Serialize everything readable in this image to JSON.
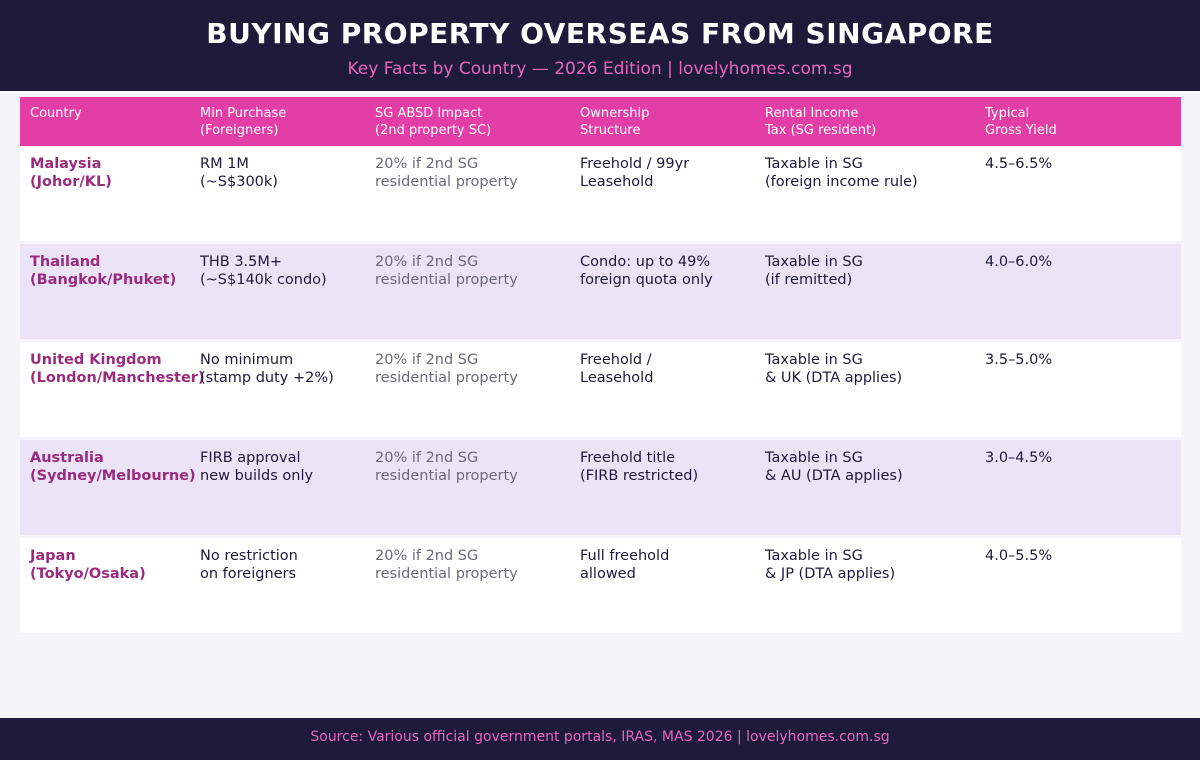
{
  "header": {
    "title": "BUYING PROPERTY OVERSEAS FROM SINGAPORE",
    "subtitle": "Key Facts by Country — 2026 Edition | lovelyhomes.com.sg"
  },
  "table": {
    "columns": [
      "Country",
      "Min Purchase\n(Foreigners)",
      "SG ABSD Impact\n(2nd property SC)",
      "Ownership\nStructure",
      "Rental Income\nTax (SG resident)",
      "Typical\nGross Yield"
    ],
    "rows": [
      {
        "country": "Malaysia\n(Johor/KL)",
        "min_purchase": "RM 1M\n(~S$300k)",
        "absd": "20% if 2nd SG\nresidential property",
        "ownership": "Freehold / 99yr\nLeasehold",
        "tax": "Taxable in SG\n(foreign income rule)",
        "yield": "4.5–6.5%"
      },
      {
        "country": "Thailand\n(Bangkok/Phuket)",
        "min_purchase": "THB 3.5M+\n(~S$140k condo)",
        "absd": "20% if 2nd SG\nresidential property",
        "ownership": "Condo: up to 49%\nforeign quota only",
        "tax": "Taxable in SG\n(if remitted)",
        "yield": "4.0–6.0%"
      },
      {
        "country": "United Kingdom\n(London/Manchester)",
        "min_purchase": "No minimum\n(stamp duty +2%)",
        "absd": "20% if 2nd SG\nresidential property",
        "ownership": "Freehold /\nLeasehold",
        "tax": "Taxable in SG\n& UK (DTA applies)",
        "yield": "3.5–5.0%"
      },
      {
        "country": "Australia\n(Sydney/Melbourne)",
        "min_purchase": "FIRB approval\nnew builds only",
        "absd": "20% if 2nd SG\nresidential property",
        "ownership": "Freehold title\n(FIRB restricted)",
        "tax": "Taxable in SG\n& AU (DTA applies)",
        "yield": "3.0–4.5%"
      },
      {
        "country": "Japan\n(Tokyo/Osaka)",
        "min_purchase": "No restriction\non foreigners",
        "absd": "20% if 2nd SG\nresidential property",
        "ownership": "Full freehold\nallowed",
        "tax": "Taxable in SG\n& JP (DTA applies)",
        "yield": "4.0–5.5%"
      }
    ]
  },
  "footer": {
    "source": "Source: Various official government portals, IRAS, MAS 2026  |  lovelyhomes.com.sg"
  },
  "colors": {
    "navy": "#1e1a3a",
    "pink": "#e23ea6",
    "country_text": "#9b2b7e",
    "alt_row": "#ebe4f6"
  }
}
